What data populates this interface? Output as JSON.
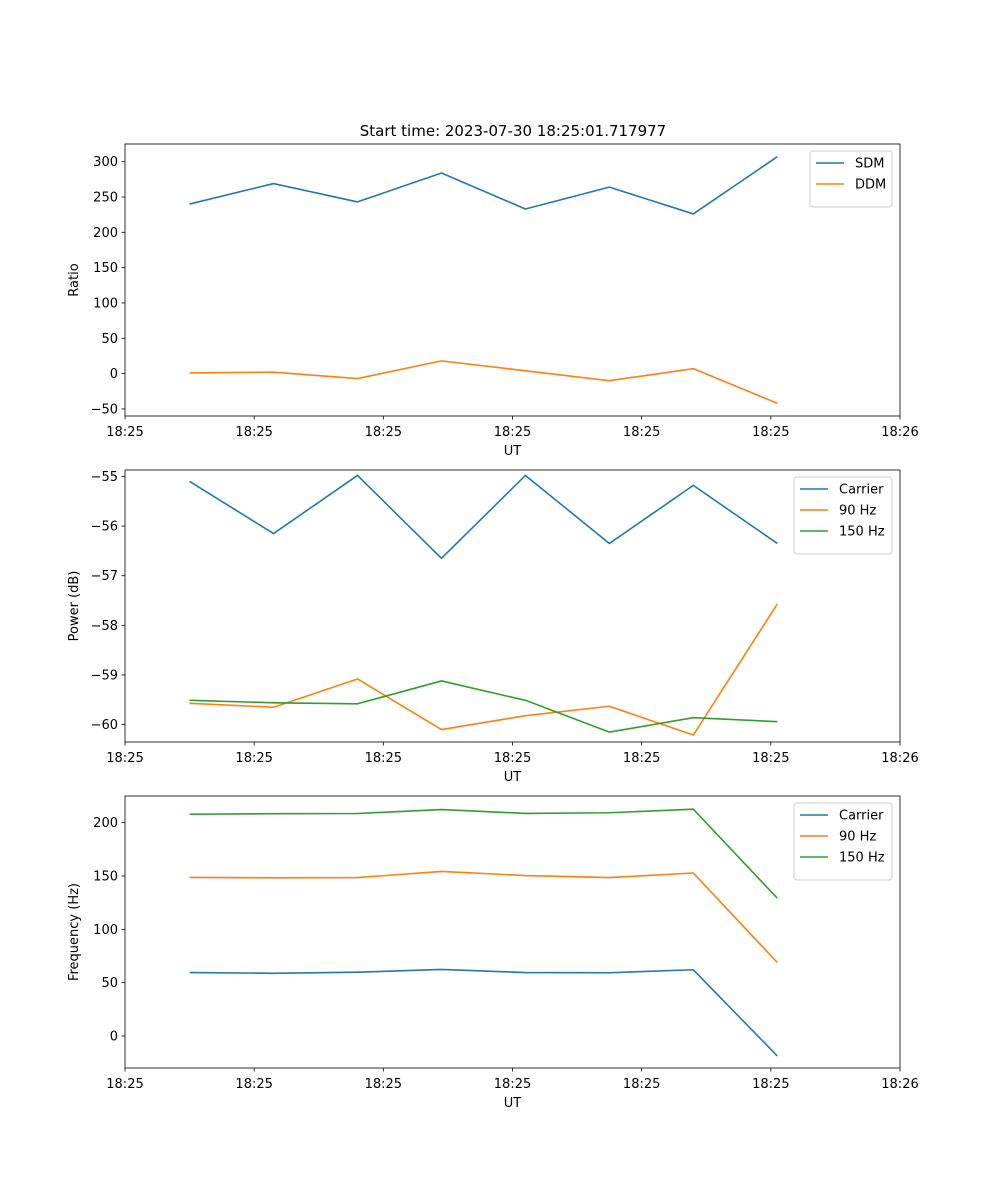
{
  "title": "Start time: 2023-07-30 18:25:01.717977",
  "colors": {
    "blue": "#1f77b4",
    "orange": "#ff7f0e",
    "green": "#2ca02c"
  },
  "chart_data": [
    {
      "type": "line",
      "title": "Start time: 2023-07-30 18:25:01.717977",
      "xlabel": "UT",
      "ylabel": "Ratio",
      "x_tick_labels": [
        "18:25",
        "18:25",
        "18:25",
        "18:25",
        "18:25",
        "18:25",
        "18:26"
      ],
      "x": [
        0.5,
        1.15,
        1.8,
        2.45,
        3.1,
        3.75,
        4.4,
        5.05
      ],
      "xlim": [
        0,
        6
      ],
      "ylim": [
        -60,
        325
      ],
      "yticks": [
        -50,
        0,
        50,
        100,
        150,
        200,
        250,
        300
      ],
      "legend": "top-right",
      "series": [
        {
          "name": "SDM",
          "color": "#1f77b4",
          "values": [
            240,
            269,
            243,
            284,
            233,
            264,
            226,
            307
          ]
        },
        {
          "name": "DDM",
          "color": "#ff7f0e",
          "values": [
            1,
            2,
            -7,
            18,
            4,
            -10,
            7,
            -42
          ]
        }
      ]
    },
    {
      "type": "line",
      "title": "",
      "xlabel": "UT",
      "ylabel": "Power (dB)",
      "x_tick_labels": [
        "18:25",
        "18:25",
        "18:25",
        "18:25",
        "18:25",
        "18:25",
        "18:26"
      ],
      "x": [
        0.5,
        1.15,
        1.8,
        2.45,
        3.1,
        3.75,
        4.4,
        5.05
      ],
      "xlim": [
        0,
        6
      ],
      "ylim": [
        -60.35,
        -54.87
      ],
      "yticks": [
        -60,
        -59,
        -58,
        -57,
        -56,
        -55
      ],
      "legend": "top-right",
      "series": [
        {
          "name": "Carrier",
          "color": "#1f77b4",
          "values": [
            -55.1,
            -56.15,
            -54.98,
            -56.65,
            -54.98,
            -56.35,
            -55.18,
            -56.35
          ]
        },
        {
          "name": "90 Hz",
          "color": "#ff7f0e",
          "values": [
            -59.57,
            -59.65,
            -59.08,
            -60.1,
            -59.82,
            -59.63,
            -60.21,
            -57.57
          ]
        },
        {
          "name": "150 Hz",
          "color": "#2ca02c",
          "values": [
            -59.51,
            -59.56,
            -59.58,
            -59.12,
            -59.51,
            -60.15,
            -59.86,
            -59.94
          ]
        }
      ]
    },
    {
      "type": "line",
      "title": "",
      "xlabel": "UT",
      "ylabel": "Frequency (Hz)",
      "x_tick_labels": [
        "18:25",
        "18:25",
        "18:25",
        "18:25",
        "18:25",
        "18:25",
        "18:26"
      ],
      "x": [
        0.5,
        1.15,
        1.8,
        2.45,
        3.1,
        3.75,
        4.4,
        5.05
      ],
      "xlim": [
        0,
        6
      ],
      "ylim": [
        -30,
        225
      ],
      "yticks": [
        0,
        50,
        100,
        150,
        200
      ],
      "legend": "top-right",
      "series": [
        {
          "name": "Carrier",
          "color": "#1f77b4",
          "values": [
            59.5,
            58.8,
            59.8,
            62.4,
            59.5,
            59.3,
            62.1,
            -18.7
          ]
        },
        {
          "name": "90 Hz",
          "color": "#ff7f0e",
          "values": [
            148.7,
            148.3,
            148.5,
            154.3,
            150.4,
            148.5,
            152.8,
            68.9
          ]
        },
        {
          "name": "150 Hz",
          "color": "#2ca02c",
          "values": [
            207.9,
            208.4,
            208.6,
            212.3,
            208.7,
            209.3,
            212.6,
            129.2
          ]
        }
      ]
    }
  ]
}
